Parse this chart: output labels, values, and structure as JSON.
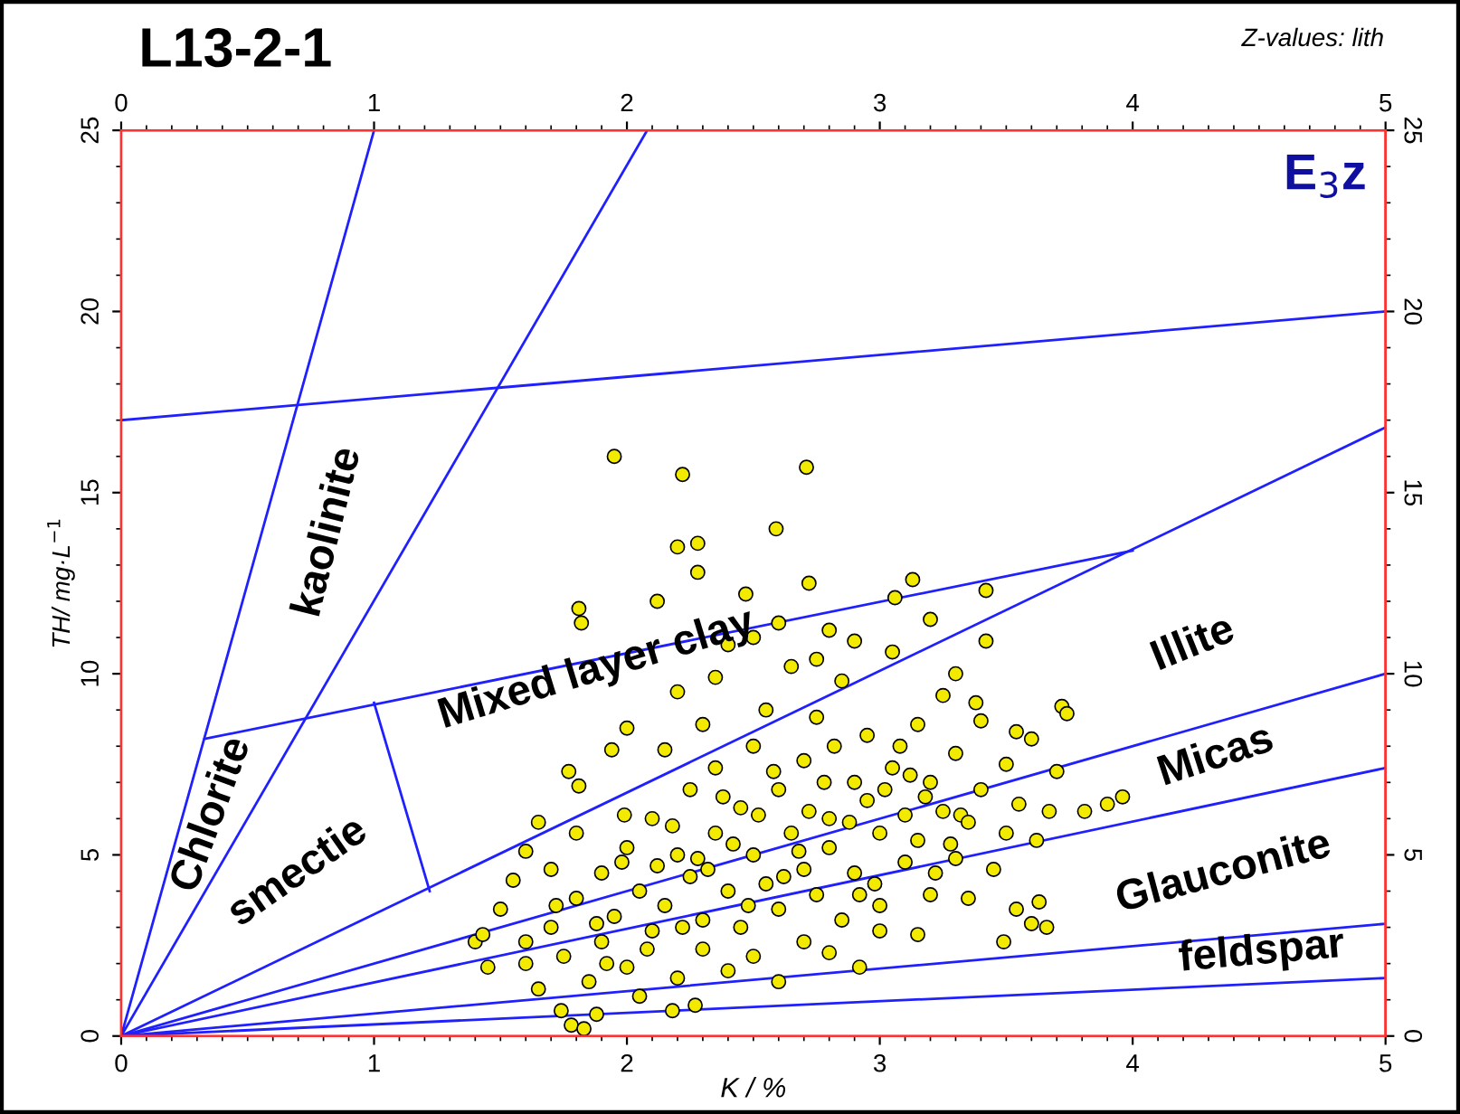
{
  "chart_data": {
    "type": "scatter",
    "title": "L13-2-1",
    "xlabel": "K / %",
    "ylabel": "TH/ mg·L$^{−1}$",
    "annotations": [
      "kaolinite",
      "Chlorite",
      "smectie",
      "Mixed layer clay",
      "Illite",
      "Micas",
      "Glauconite",
      "feldspar",
      "E$_{3}$z",
      "Z-values: lith"
    ],
    "xlim": [
      0,
      5
    ],
    "xticks": [
      0,
      1,
      2,
      3,
      4,
      5
    ],
    "ylim": [
      0,
      25
    ],
    "yticks": [
      0,
      5,
      10,
      15,
      20,
      25
    ],
    "x2lim": [
      0,
      5
    ],
    "x2ticks": [
      0,
      1,
      2,
      3,
      4,
      5
    ],
    "y2lim": [
      0,
      25
    ],
    "y2ticks": [
      0,
      5,
      10,
      15,
      20,
      25
    ],
    "grid": false,
    "series": [
      {
        "type": "line",
        "color": "#2020ff",
        "x": [
          0,
          1
        ],
        "values": [
          0,
          25
        ]
      },
      {
        "type": "line",
        "color": "#2020ff",
        "x": [
          0,
          2.08
        ],
        "values": [
          0,
          25
        ]
      },
      {
        "type": "line",
        "color": "#2020ff",
        "x": [
          0,
          5
        ],
        "values": [
          17,
          20
        ]
      },
      {
        "type": "line",
        "color": "#2020ff",
        "x": [
          0,
          5
        ],
        "values": [
          0,
          16.8
        ]
      },
      {
        "type": "line",
        "color": "#2020ff",
        "x": [
          0.33,
          4.0
        ],
        "values": [
          8.2,
          13.4
        ]
      },
      {
        "type": "line",
        "color": "#2020ff",
        "x": [
          0,
          5
        ],
        "values": [
          0,
          10
        ]
      },
      {
        "type": "line",
        "color": "#2020ff",
        "x": [
          0,
          5
        ],
        "values": [
          0,
          7.4
        ]
      },
      {
        "type": "line",
        "color": "#2020ff",
        "x": [
          0,
          5
        ],
        "values": [
          0,
          3.1
        ]
      },
      {
        "type": "line",
        "color": "#2020ff",
        "x": [
          0,
          5
        ],
        "values": [
          0,
          1.6
        ]
      },
      {
        "type": "line",
        "color": "#2020ff",
        "x": [
          1.0,
          1.22
        ],
        "values": [
          9.2,
          4.0
        ]
      },
      {
        "color": "#f2ea00",
        "marker": "circle",
        "x": [
          1.88,
          1.98,
          2.08,
          2.18,
          2.28,
          2.38,
          2.48,
          2.58,
          2.68,
          2.78,
          2.88,
          2.98,
          3.08,
          3.18,
          3.28,
          2.12,
          2.32,
          2.52,
          2.72,
          2.92,
          3.12,
          3.32,
          1.72,
          1.92,
          2.22,
          2.42,
          2.62,
          2.82,
          3.02,
          3.22,
          1.95,
          2.22,
          2.71,
          2.59,
          2.2,
          2.28,
          2.28,
          2.72,
          2.12,
          1.82,
          1.81,
          2.47,
          3.13,
          3.06,
          3.42,
          3.42,
          3.38,
          3.72,
          3.74,
          3.54,
          3.9,
          3.96,
          3.67,
          3.81,
          3.62,
          3.6,
          3.66,
          3.63,
          3.54,
          3.49,
          2.92,
          1.78,
          1.83,
          1.74,
          1.88,
          2.18,
          2.27,
          1.6,
          1.4,
          1.43,
          1.65,
          1.6,
          1.99,
          1.94,
          1.77,
          1.81,
          1.6,
          1.7,
          1.75,
          1.8,
          1.85,
          1.9,
          1.9,
          1.95,
          2.0,
          2.0,
          2.05,
          2.1,
          2.1,
          2.15,
          2.2,
          2.2,
          2.25,
          2.25,
          2.3,
          2.3,
          2.35,
          2.35,
          2.4,
          2.4,
          2.45,
          2.45,
          2.5,
          2.5,
          2.5,
          2.55,
          2.55,
          2.6,
          2.6,
          2.65,
          2.65,
          2.7,
          2.7,
          2.7,
          2.75,
          2.75,
          2.8,
          2.8,
          2.85,
          2.85,
          2.9,
          2.9,
          2.95,
          2.95,
          3.0,
          3.0,
          3.05,
          3.05,
          3.1,
          3.1,
          3.15,
          3.15,
          3.2,
          3.2,
          3.25,
          3.25,
          3.3,
          3.3,
          3.35,
          3.4,
          3.45,
          3.5,
          3.5,
          3.55,
          2.0,
          2.2,
          2.4,
          2.6,
          2.8,
          2.9,
          1.8,
          1.7,
          2.15,
          2.35,
          2.5,
          1.65,
          2.05,
          2.6,
          2.8,
          3.0,
          1.5,
          1.55,
          1.45,
          2.3,
          2.75,
          3.2,
          3.3,
          3.4,
          3.6,
          3.7,
          3.35,
          3.15
        ],
        "values": [
          3.1,
          4.8,
          2.4,
          5.8,
          4.9,
          6.6,
          3.6,
          7.3,
          5.1,
          7.0,
          5.9,
          4.2,
          8.0,
          6.6,
          5.3,
          4.7,
          4.6,
          6.1,
          6.2,
          3.9,
          7.2,
          6.1,
          3.6,
          2.0,
          3.0,
          5.3,
          4.4,
          8.0,
          6.8,
          4.5,
          16.0,
          15.5,
          15.7,
          14.0,
          13.5,
          13.6,
          12.8,
          12.5,
          12.0,
          11.4,
          11.8,
          12.2,
          12.6,
          12.1,
          12.3,
          10.9,
          9.2,
          9.1,
          8.9,
          8.4,
          6.4,
          6.6,
          6.2,
          6.2,
          5.4,
          3.1,
          3.0,
          3.7,
          3.5,
          2.6,
          1.9,
          0.3,
          0.2,
          0.7,
          0.6,
          0.7,
          0.85,
          2.6,
          2.6,
          2.8,
          5.9,
          5.1,
          6.1,
          7.9,
          7.3,
          6.9,
          2.0,
          3.0,
          2.2,
          3.8,
          1.5,
          4.5,
          2.6,
          3.3,
          5.2,
          1.9,
          4.0,
          6.0,
          2.9,
          3.6,
          5.0,
          1.6,
          4.4,
          6.8,
          2.4,
          3.2,
          5.6,
          7.4,
          4.0,
          1.8,
          6.3,
          3.0,
          5.0,
          8.0,
          2.2,
          4.2,
          9.0,
          6.8,
          3.5,
          5.6,
          10.2,
          4.6,
          7.6,
          2.6,
          8.8,
          3.9,
          6.0,
          5.2,
          9.8,
          3.2,
          7.0,
          4.5,
          6.5,
          8.3,
          5.6,
          3.6,
          7.4,
          10.6,
          6.1,
          4.8,
          8.6,
          5.4,
          7.0,
          3.9,
          6.2,
          9.4,
          4.9,
          7.8,
          5.9,
          6.8,
          4.6,
          7.5,
          5.6,
          6.4,
          8.5,
          9.5,
          10.8,
          11.4,
          11.2,
          10.9,
          5.6,
          4.6,
          7.9,
          9.9,
          11.0,
          1.3,
          1.1,
          1.5,
          2.3,
          2.9,
          3.5,
          4.3,
          1.9,
          8.6,
          10.4,
          11.5,
          10.0,
          8.7,
          8.2,
          7.3,
          3.8,
          2.8
        ]
      }
    ]
  }
}
